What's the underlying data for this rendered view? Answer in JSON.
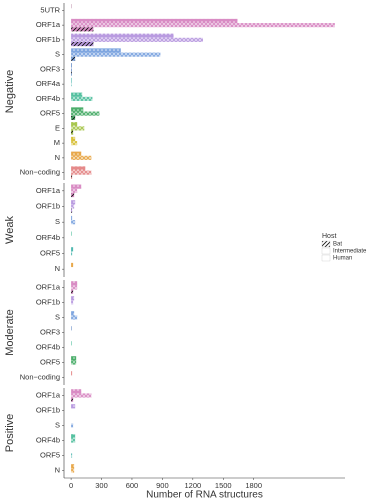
{
  "chart_data": [
    {
      "type": "bar",
      "orientation": "horizontal",
      "facet": "Negative",
      "legend_title": "Host",
      "legend_position": "right",
      "categories": [
        "5UTR",
        "ORF1a",
        "ORF1b",
        "S",
        "ORF3",
        "ORF4a",
        "ORF4b",
        "ORF5",
        "E",
        "M",
        "N",
        "Non−coding"
      ],
      "colors": [
        "#c9a0b8",
        "#d98cc4",
        "#b99be0",
        "#7fa6e0",
        "#6a8fc8",
        "#4fb8b0",
        "#55c1a0",
        "#4cae6b",
        "#a8c64e",
        "#d8c13b",
        "#e8a84a",
        "#e58a8a"
      ],
      "xlim": [
        -70,
        2700
      ],
      "series": [
        {
          "name": "Bat",
          "pattern": "hatch",
          "values": [
            null,
            220,
            220,
            40,
            8,
            null,
            null,
            40,
            20,
            null,
            null,
            10
          ]
        },
        {
          "name": "Intermediate",
          "pattern": "crosshatch",
          "values": [
            null,
            2600,
            1300,
            880,
            8,
            5,
            210,
            280,
            130,
            60,
            200,
            200
          ]
        },
        {
          "name": "Human",
          "pattern": "dots",
          "values": [
            5,
            1640,
            1010,
            490,
            8,
            5,
            110,
            120,
            60,
            40,
            100,
            140
          ]
        }
      ]
    },
    {
      "type": "bar",
      "orientation": "horizontal",
      "facet": "Weak",
      "categories": [
        "ORF1a",
        "ORF1b",
        "S",
        "ORF4b",
        "ORF5",
        "N"
      ],
      "colors": [
        "#d98cc4",
        "#b99be0",
        "#7fa6e0",
        "#55c1a0",
        "#4fb8b0",
        "#e8a84a"
      ],
      "xlim": [
        -70,
        2700
      ],
      "series": [
        {
          "name": "Bat",
          "pattern": "hatch",
          "values": [
            30,
            10,
            null,
            null,
            null,
            null
          ]
        },
        {
          "name": "Intermediate",
          "pattern": "crosshatch",
          "values": [
            60,
            30,
            40,
            null,
            10,
            null
          ]
        },
        {
          "name": "Human",
          "pattern": "dots",
          "values": [
            100,
            40,
            10,
            5,
            20,
            20
          ]
        }
      ]
    },
    {
      "type": "bar",
      "orientation": "horizontal",
      "facet": "Moderate",
      "categories": [
        "ORF1a",
        "ORF1b",
        "S",
        "ORF3",
        "ORF4b",
        "ORF5",
        "Non−coding"
      ],
      "colors": [
        "#d98cc4",
        "#b99be0",
        "#7fa6e0",
        "#6a8fc8",
        "#55c1a0",
        "#4cae6b",
        "#e58a8a"
      ],
      "xlim": [
        -70,
        2700
      ],
      "series": [
        {
          "name": "Bat",
          "pattern": "hatch",
          "values": [
            20,
            null,
            null,
            null,
            null,
            null,
            null
          ]
        },
        {
          "name": "Intermediate",
          "pattern": "crosshatch",
          "values": [
            60,
            20,
            60,
            null,
            null,
            50,
            null
          ]
        },
        {
          "name": "Human",
          "pattern": "dots",
          "values": [
            60,
            30,
            30,
            5,
            5,
            50,
            10
          ]
        }
      ]
    },
    {
      "type": "bar",
      "orientation": "horizontal",
      "facet": "Positive",
      "categories": [
        "ORF1a",
        "ORF1b",
        "S",
        "ORF4b",
        "ORF5",
        "N"
      ],
      "colors": [
        "#d98cc4",
        "#b99be0",
        "#7fa6e0",
        "#55c1a0",
        "#4fb8b0",
        "#e8a84a"
      ],
      "xlim": [
        -70,
        2700
      ],
      "xticks": [
        0,
        300,
        600,
        900,
        1200,
        1500,
        1800
      ],
      "x_label": "Number of RNA structures",
      "series": [
        {
          "name": "Bat",
          "pattern": "hatch",
          "values": [
            20,
            null,
            null,
            null,
            null,
            null
          ]
        },
        {
          "name": "Intermediate",
          "pattern": "crosshatch",
          "values": [
            200,
            null,
            20,
            40,
            10,
            30
          ]
        },
        {
          "name": "Human",
          "pattern": "dots",
          "values": [
            100,
            40,
            null,
            40,
            null,
            30
          ]
        }
      ]
    }
  ]
}
